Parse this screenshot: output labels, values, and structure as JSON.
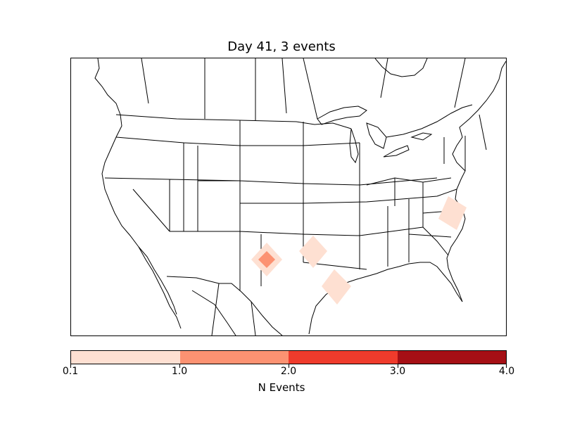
{
  "title": "Day 41, 3 events",
  "colorbar": {
    "label": "N Events",
    "ticks": [
      "0.1",
      "1.0",
      "2.0",
      "3.0",
      "4.0"
    ],
    "colors": [
      "#fee0d2",
      "#fc9272",
      "#ef3b2c",
      "#a50f15"
    ]
  },
  "map": {
    "region": "North America (United States, southern Canada, northern Mexico)",
    "features": [
      "coastlines",
      "country borders",
      "state/province boundaries",
      "Great Lakes"
    ],
    "event_markers": [
      {
        "region": "Texas Panhandle / W. Oklahoma",
        "level": 1.5
      },
      {
        "region": "Texas Panhandle / W. Oklahoma",
        "level": 0.5
      },
      {
        "region": "E. Oklahoma / NE Texas",
        "level": 0.5
      },
      {
        "region": "SE Texas coast",
        "level": 0.5
      },
      {
        "region": "North Carolina coast",
        "level": 0.5
      }
    ]
  }
}
